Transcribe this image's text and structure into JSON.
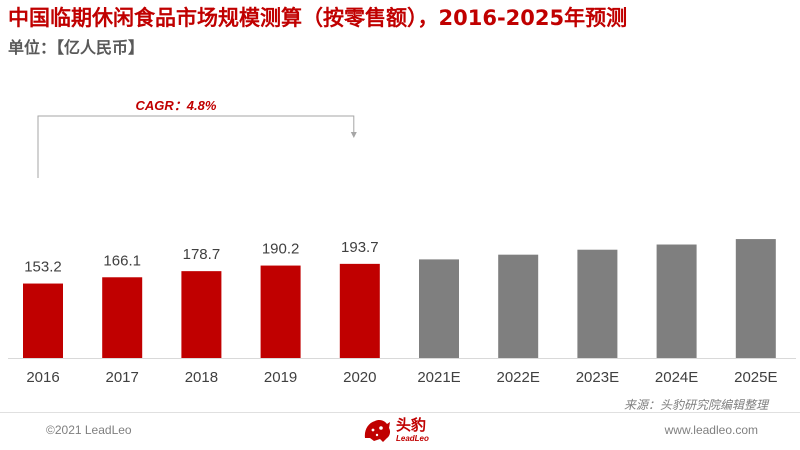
{
  "header": {
    "title": "中国临期休闲食品市场规模测算（按零售额），2016-2025年预测",
    "unit": "单位：【亿人民币】"
  },
  "colors": {
    "actual": "#c00000",
    "forecast": "#7f7f7f",
    "title": "#c00000"
  },
  "chart_data": {
    "type": "bar",
    "categories": [
      "2016",
      "2017",
      "2018",
      "2019",
      "2020",
      "2021E",
      "2022E",
      "2023E",
      "2024E",
      "2025E"
    ],
    "values": [
      153.2,
      166.1,
      178.7,
      190.2,
      193.7,
      202.9,
      212.6,
      222.8,
      233.5,
      244.7
    ],
    "labels": [
      "153.2",
      "166.1",
      "178.7",
      "190.2",
      "193.7",
      "",
      "",
      "",
      "",
      ""
    ],
    "forecast_from_index": 5,
    "title": "中国临期休闲食品市场规模测算（按零售额），2016-2025年预测",
    "ylabel": "",
    "annotation": "CAGR：4.8%",
    "grid": false,
    "legend": "none"
  },
  "footer": {
    "source": "来源：头豹研究院编辑整理",
    "copyright": "©2021 LeadLeo",
    "website": "www.leadleo.com",
    "brand_cn": "头豹",
    "brand_en": "LeadLeo"
  }
}
